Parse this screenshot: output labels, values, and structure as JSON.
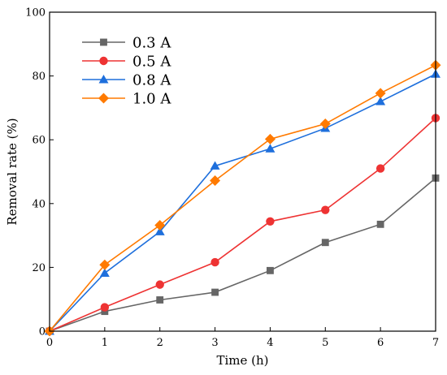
{
  "chart_data": {
    "type": "line",
    "title": "",
    "xlabel": "Time (h)",
    "ylabel": "Removal rate (%)",
    "xlim": [
      0,
      7
    ],
    "ylim": [
      0,
      100
    ],
    "x_ticks": [
      "0",
      "1",
      "2",
      "3",
      "4",
      "5",
      "6",
      "7"
    ],
    "y_ticks": [
      "0",
      "20",
      "40",
      "60",
      "80",
      "100"
    ],
    "grid": false,
    "legend_position": "top-left",
    "x": [
      0,
      1,
      2,
      3,
      4,
      5,
      6,
      7
    ],
    "series": [
      {
        "name": "0.3 A",
        "color": "#666666",
        "marker": "square",
        "values": [
          0,
          6.2,
          9.8,
          12.2,
          19.0,
          27.8,
          33.5,
          48.0
        ]
      },
      {
        "name": "0.5 A",
        "color": "#ee3333",
        "marker": "circle",
        "values": [
          0,
          7.5,
          14.6,
          21.6,
          34.4,
          38.0,
          51.0,
          66.8
        ]
      },
      {
        "name": "0.8 A",
        "color": "#1e6fdc",
        "marker": "triangle",
        "values": [
          0,
          18.2,
          31.2,
          51.8,
          57.2,
          63.6,
          72.0,
          80.6
        ]
      },
      {
        "name": "1.0 A",
        "color": "#ff7a00",
        "marker": "diamond",
        "values": [
          0,
          20.8,
          33.2,
          47.2,
          60.2,
          65.0,
          74.6,
          83.4
        ]
      }
    ]
  }
}
